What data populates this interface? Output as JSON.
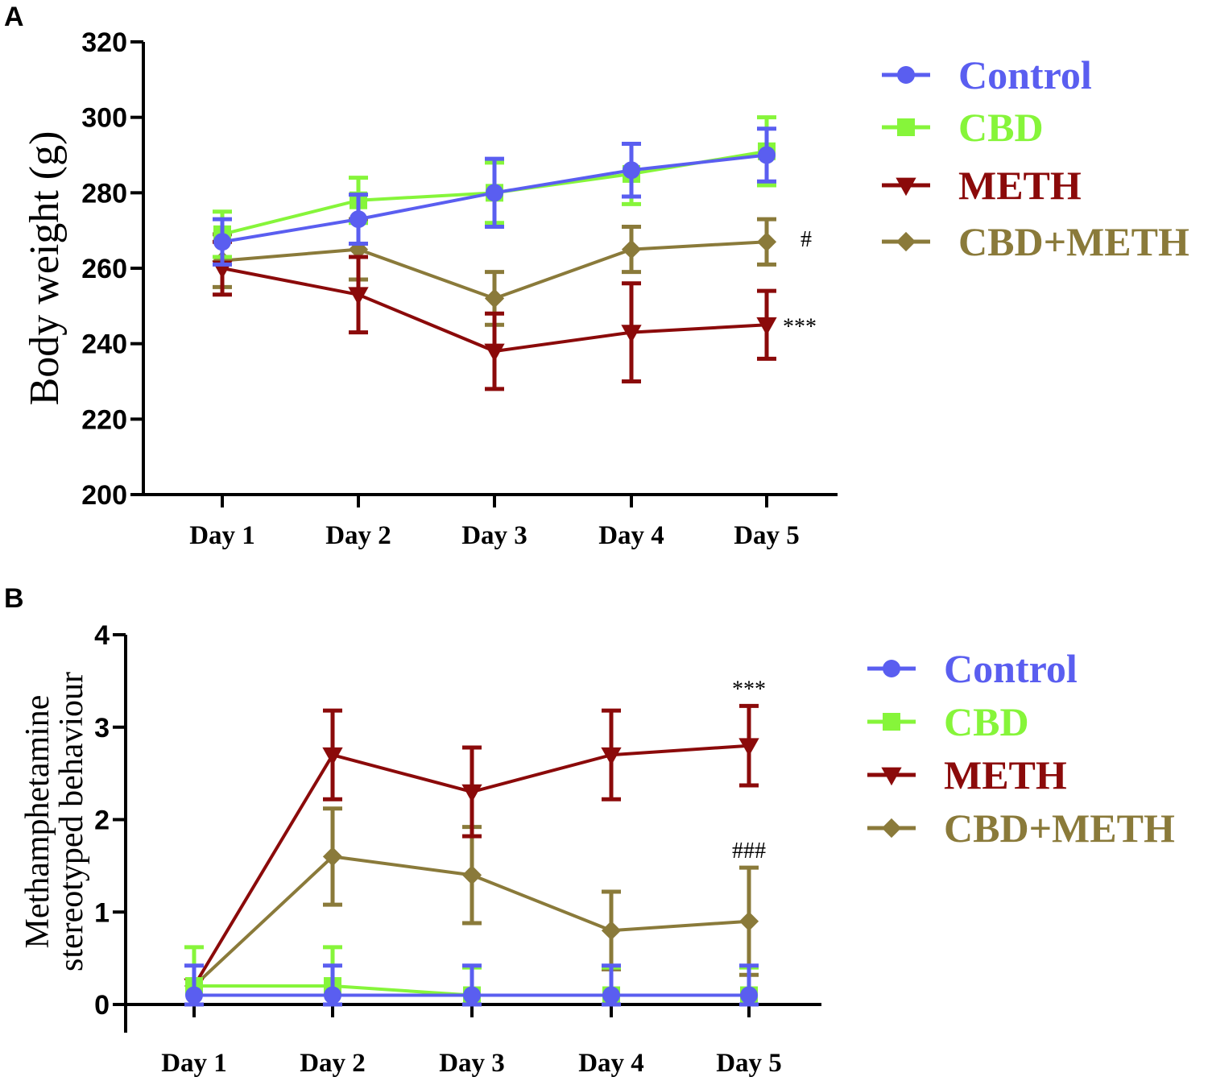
{
  "chart_data": [
    {
      "panel": "A",
      "type": "line",
      "ylabel": "Body weight (g)",
      "xlabel": "",
      "categories": [
        "Day 1",
        "Day 2",
        "Day 3",
        "Day 4",
        "Day 5"
      ],
      "ylim": [
        200,
        320
      ],
      "yticks": [
        200,
        220,
        240,
        260,
        280,
        300,
        320
      ],
      "legend_position": "right",
      "series": [
        {
          "name": "Control",
          "color": "#5a5ef0",
          "marker": "circle",
          "values": [
            267,
            273,
            280,
            286,
            290
          ],
          "err": [
            6,
            6.5,
            9,
            7,
            7
          ]
        },
        {
          "name": "CBD",
          "color": "#86f53a",
          "marker": "square",
          "values": [
            269,
            278,
            280,
            285,
            291
          ],
          "err": [
            6,
            6,
            8,
            8,
            9
          ]
        },
        {
          "name": "METH",
          "color": "#8b0a0a",
          "marker": "triangle-down",
          "values": [
            260,
            253,
            238,
            243,
            245
          ],
          "err": [
            7,
            10,
            10,
            13,
            9
          ]
        },
        {
          "name": "CBD+METH",
          "color": "#8a7a3a",
          "marker": "diamond",
          "values": [
            262,
            265,
            252,
            265,
            267
          ],
          "err": [
            7,
            8,
            7,
            6,
            6
          ]
        }
      ],
      "annotations": [
        {
          "text": "#",
          "category": "Day 5",
          "value": 267
        },
        {
          "text": "***",
          "category": "Day 5",
          "value": 245
        }
      ]
    },
    {
      "panel": "B",
      "type": "line",
      "ylabel": [
        "Methamphetamine",
        "stereotyped behaviour"
      ],
      "xlabel": "",
      "categories": [
        "Day 1",
        "Day 2",
        "Day 3",
        "Day 4",
        "Day 5"
      ],
      "ylim": [
        0,
        4
      ],
      "yticks": [
        0,
        1,
        2,
        3,
        4
      ],
      "legend_position": "right",
      "series": [
        {
          "name": "Control",
          "color": "#5a5ef0",
          "marker": "circle",
          "values": [
            0.1,
            0.1,
            0.1,
            0.1,
            0.1
          ],
          "err": [
            0.32,
            0.32,
            0.32,
            0.32,
            0.32
          ]
        },
        {
          "name": "CBD",
          "color": "#86f53a",
          "marker": "square",
          "values": [
            0.2,
            0.2,
            0.1,
            0.1,
            0.1
          ],
          "err": [
            0.42,
            0.42,
            0.3,
            0.3,
            0.3
          ]
        },
        {
          "name": "METH",
          "color": "#8b0a0a",
          "marker": "triangle-down",
          "values": [
            0.2,
            2.7,
            2.3,
            2.7,
            2.8
          ],
          "err": [
            0,
            0.48,
            0.48,
            0.48,
            0.43
          ]
        },
        {
          "name": "CBD+METH",
          "color": "#8a7a3a",
          "marker": "diamond",
          "values": [
            0.2,
            1.6,
            1.4,
            0.8,
            0.9
          ],
          "err": [
            0,
            0.52,
            0.52,
            0.42,
            0.58
          ]
        }
      ],
      "annotations": [
        {
          "text": "***",
          "category": "Day 5",
          "value": 3.23
        },
        {
          "text": "###",
          "category": "Day 5",
          "value": 1.48
        }
      ]
    }
  ]
}
